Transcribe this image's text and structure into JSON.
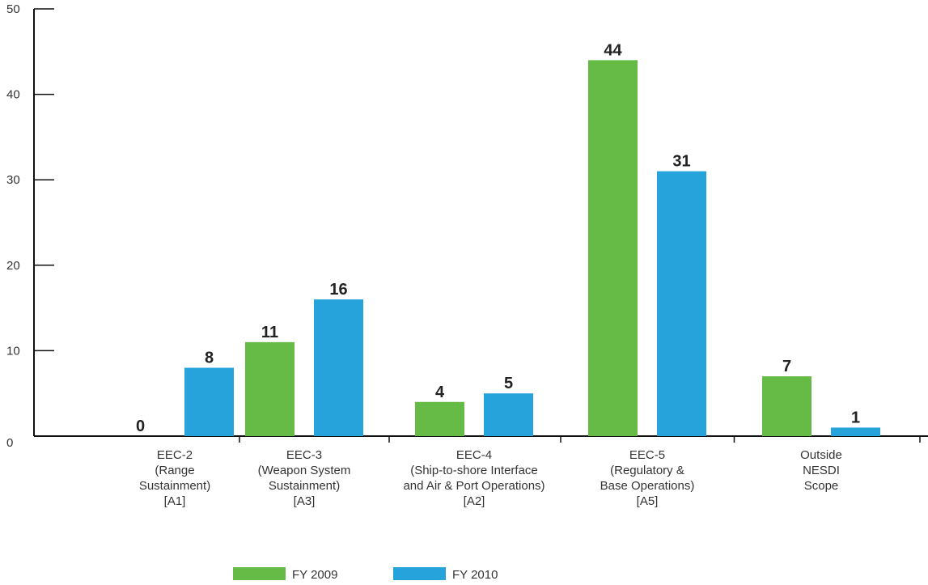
{
  "chart_data": {
    "type": "bar",
    "categories": [
      [
        "EEC-2",
        "(Range",
        "Sustainment)",
        "[A1]"
      ],
      [
        "EEC-3",
        "(Weapon System",
        "Sustainment)",
        "[A3]"
      ],
      [
        "EEC-4",
        "(Ship-to-shore Interface",
        "and Air & Port Operations)",
        "[A2]"
      ],
      [
        "EEC-5",
        "(Regulatory &",
        "Base Operations)",
        "[A5]"
      ],
      [
        "Outside",
        "NESDI",
        "Scope"
      ]
    ],
    "series": [
      {
        "name": "FY 2009",
        "color": "#66bb46",
        "values": [
          0,
          11,
          4,
          44,
          7
        ]
      },
      {
        "name": "FY 2010",
        "color": "#27a3dc",
        "values": [
          8,
          16,
          5,
          31,
          1
        ]
      }
    ],
    "ylim": [
      0,
      50
    ],
    "yticks": [
      0,
      10,
      20,
      30,
      40,
      50
    ],
    "grid": false,
    "legend_position": "bottom-center",
    "title": "",
    "xlabel": "",
    "ylabel": ""
  }
}
